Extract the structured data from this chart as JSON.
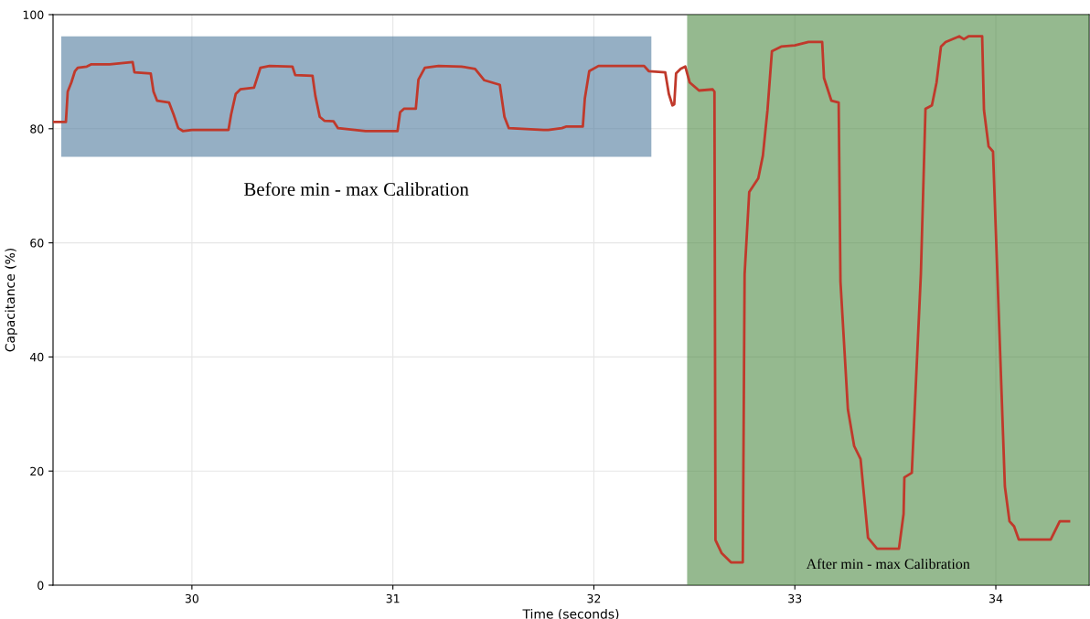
{
  "chart_data": {
    "type": "line",
    "xlabel": "Time (seconds)",
    "ylabel": "Capacitance (%)",
    "xlim": [
      29.309,
      34.464
    ],
    "ylim": [
      0,
      100
    ],
    "xticks": [
      30,
      31,
      32,
      33,
      34
    ],
    "yticks": [
      0,
      20,
      40,
      60,
      80,
      100
    ],
    "grid": true,
    "series": [
      {
        "color": "#c0392b",
        "x": [
          29.309,
          29.373,
          29.382,
          29.4,
          29.418,
          29.432,
          29.477,
          29.5,
          29.591,
          29.705,
          29.714,
          29.795,
          29.809,
          29.827,
          29.886,
          29.909,
          29.932,
          29.955,
          30.0,
          30.182,
          30.195,
          30.218,
          30.241,
          30.309,
          30.341,
          30.386,
          30.5,
          30.514,
          30.6,
          30.614,
          30.636,
          30.659,
          30.705,
          30.727,
          30.864,
          31.023,
          31.036,
          31.055,
          31.114,
          31.127,
          31.159,
          31.227,
          31.341,
          31.409,
          31.455,
          31.532,
          31.555,
          31.577,
          31.75,
          31.773,
          31.841,
          31.864,
          31.945,
          31.955,
          31.977,
          32.023,
          32.25,
          32.273,
          32.355,
          32.373,
          32.391,
          32.4,
          32.409,
          32.432,
          32.455,
          32.477,
          32.523,
          32.591,
          32.6,
          32.605,
          32.636,
          32.682,
          32.741,
          32.75,
          32.773,
          32.818,
          32.841,
          32.864,
          32.886,
          32.932,
          33.0,
          33.068,
          33.136,
          33.145,
          33.182,
          33.218,
          33.227,
          33.264,
          33.295,
          33.327,
          33.364,
          33.409,
          33.464,
          33.518,
          33.541,
          33.545,
          33.582,
          33.627,
          33.65,
          33.682,
          33.705,
          33.727,
          33.75,
          33.818,
          33.841,
          33.864,
          33.932,
          33.941,
          33.964,
          33.986,
          34.036,
          34.045,
          34.068,
          34.091,
          34.114,
          34.273,
          34.318,
          34.364
        ],
        "values": [
          81.2,
          81.2,
          86.5,
          88.1,
          90.1,
          90.7,
          90.9,
          91.3,
          91.3,
          91.7,
          89.9,
          89.7,
          86.5,
          84.9,
          84.6,
          82.5,
          80.1,
          79.6,
          79.8,
          79.8,
          82.5,
          86.1,
          86.9,
          87.2,
          90.7,
          91.0,
          90.9,
          89.4,
          89.3,
          85.8,
          82.1,
          81.4,
          81.3,
          80.1,
          79.6,
          79.6,
          82.9,
          83.5,
          83.5,
          88.6,
          90.7,
          91.0,
          90.9,
          90.5,
          88.5,
          87.7,
          82.1,
          80.1,
          79.8,
          79.8,
          80.1,
          80.4,
          80.4,
          85.3,
          90.1,
          91.0,
          91.0,
          90.1,
          89.9,
          86.1,
          84.1,
          84.3,
          89.7,
          90.5,
          90.9,
          88.1,
          86.7,
          86.9,
          86.5,
          7.9,
          5.6,
          4.0,
          4.0,
          54.5,
          68.9,
          71.3,
          75.3,
          83.3,
          93.6,
          94.4,
          94.6,
          95.2,
          95.2,
          88.9,
          84.9,
          84.6,
          53.2,
          30.8,
          24.4,
          22.1,
          8.3,
          6.4,
          6.4,
          6.4,
          12.5,
          18.9,
          19.7,
          54.5,
          83.5,
          84.1,
          88.1,
          94.4,
          95.2,
          96.2,
          95.7,
          96.2,
          96.2,
          83.3,
          76.9,
          76.0,
          26.3,
          17.3,
          11.2,
          10.3,
          8.0,
          8.0,
          11.2,
          11.2
        ]
      }
    ],
    "bands": [
      {
        "axis": "x",
        "from": 29.35,
        "to": 32.286,
        "label": "Before min - max Calibration",
        "color": "#4f7a9c"
      },
      {
        "axis": "x",
        "from": 32.464,
        "to": 34.464,
        "label": "After min - max Calibration",
        "color": "#4f8a45"
      }
    ]
  }
}
